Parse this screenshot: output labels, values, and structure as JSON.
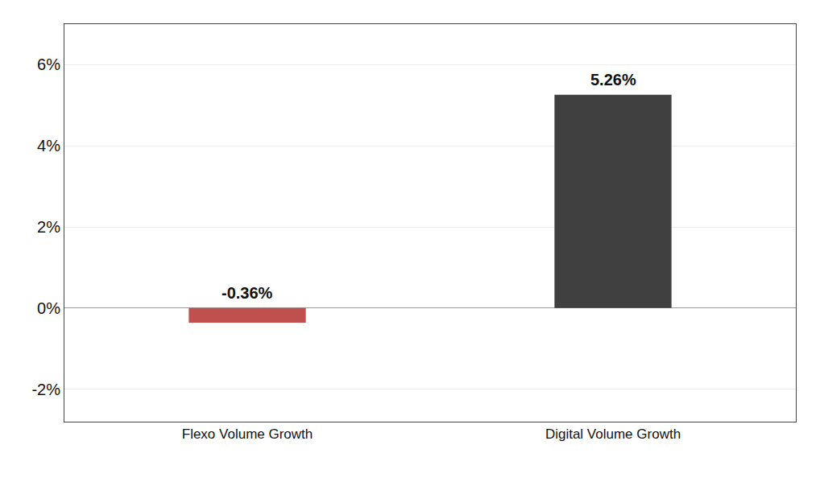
{
  "chart_data": {
    "type": "bar",
    "categories": [
      "Flexo Volume Growth",
      "Digital Volume Growth"
    ],
    "values": [
      -0.36,
      5.26
    ],
    "value_labels": [
      "-0.36%",
      "5.26%"
    ],
    "colors": [
      "#C0504D",
      "#404040"
    ],
    "ylim": [
      -2.8,
      7.0
    ],
    "yticks": [
      {
        "value": -2,
        "label": "-2%"
      },
      {
        "value": 0,
        "label": "0%"
      },
      {
        "value": 2,
        "label": "2%"
      },
      {
        "value": 4,
        "label": "4%"
      },
      {
        "value": 6,
        "label": "6%"
      }
    ],
    "grid": true,
    "data_labels": true
  }
}
